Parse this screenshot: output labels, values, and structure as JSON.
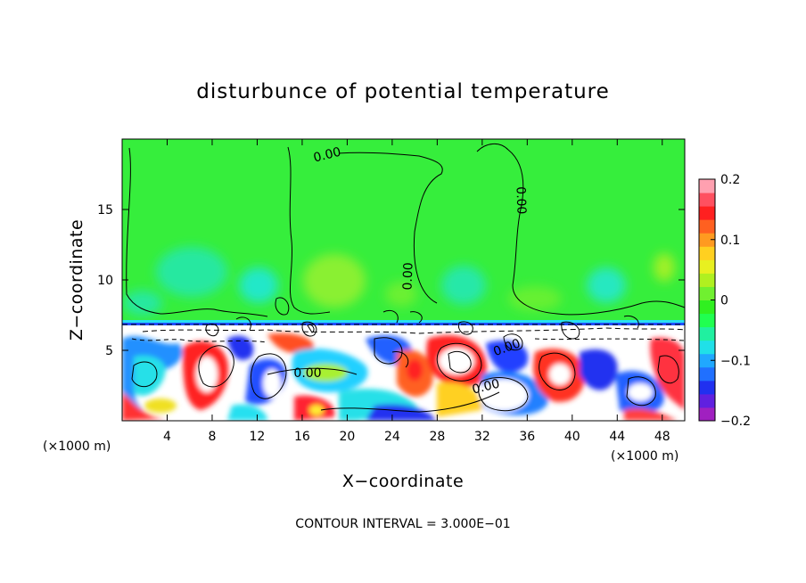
{
  "chart_data": {
    "type": "heatmap",
    "title": "disturbunce of potential temperature",
    "xlabel": "X−coordinate",
    "ylabel": "Z−coordinate",
    "x_unit_label": "(×1000 m)",
    "x_unit_label_right": "(×1000 m)",
    "x_ticks": [
      4,
      8,
      12,
      16,
      20,
      24,
      28,
      32,
      36,
      40,
      44,
      48
    ],
    "y_ticks": [
      5,
      10,
      15
    ],
    "xlim": [
      0,
      50
    ],
    "ylim": [
      0,
      20
    ],
    "contour_interval_text": "CONTOUR INTERVAL = 3.000E−01",
    "contour_labels": [
      "0.00",
      "0.00",
      "0.00",
      "0.00",
      "0.00",
      "0.00"
    ],
    "colorbar": {
      "ticks": [
        "0.2",
        "0.1",
        "0",
        "−0.1",
        "−0.2"
      ],
      "range": [
        -0.2,
        0.2
      ],
      "colors": [
        "#a020c0",
        "#6020e0",
        "#2030f0",
        "#2070ff",
        "#20a8ff",
        "#20e0e8",
        "#20f0a0",
        "#20ff50",
        "#30f020",
        "#70f030",
        "#b0f020",
        "#e8f020",
        "#ffd020",
        "#ff9a20",
        "#ff6020",
        "#ff2020",
        "#ff5060",
        "#ffa0b0"
      ]
    },
    "field": {
      "description_levels": {
        "upper_layer_z_range": [
          7,
          20
        ],
        "upper_layer_value_approx": 0.0,
        "turbulent_layer_z_range": [
          0,
          7
        ],
        "turbulent_layer_value_range": [
          -0.3,
          0.3
        ]
      }
    }
  }
}
